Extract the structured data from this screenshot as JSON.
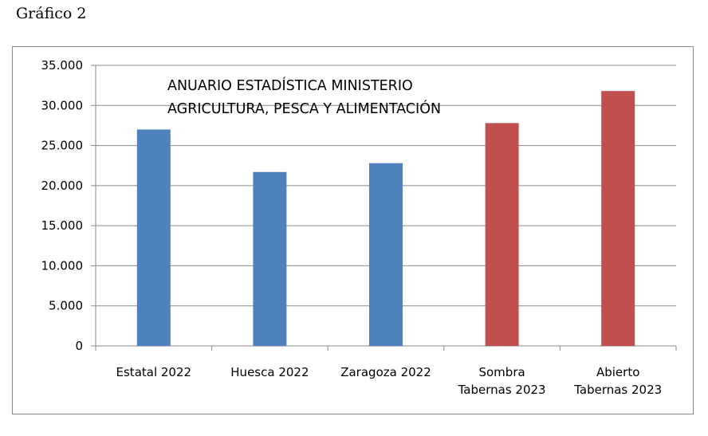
{
  "caption": "Gráfico 2",
  "chart_data": {
    "type": "bar",
    "categories": [
      "Estatal 2022",
      "Huesca 2022",
      "Zaragoza 2022",
      "Sombra Tabernas 2023",
      "Abierto Tabernas 2023"
    ],
    "category_lines": [
      [
        "Estatal 2022"
      ],
      [
        "Huesca 2022"
      ],
      [
        "Zaragoza 2022"
      ],
      [
        "Sombra",
        "Tabernas 2023"
      ],
      [
        "Abierto",
        "Tabernas 2023"
      ]
    ],
    "values": [
      27000,
      21700,
      22800,
      27800,
      31800
    ],
    "bar_colors": [
      "#4f81bd",
      "#4f81bd",
      "#4f81bd",
      "#c0504d",
      "#c0504d"
    ],
    "ylim": [
      0,
      35000
    ],
    "yticks": [
      0,
      5000,
      10000,
      15000,
      20000,
      25000,
      30000,
      35000
    ],
    "ytick_labels": [
      "0",
      "5.000",
      "10.000",
      "15.000",
      "20.000",
      "25.000",
      "30.000",
      "35.000"
    ],
    "grid": true,
    "annotation": [
      "ANUARIO ESTADÍSTICA MINISTERIO",
      "AGRICULTURA, PESCA Y ALIMENTACIÓN"
    ],
    "title": "",
    "xlabel": "",
    "ylabel": ""
  }
}
